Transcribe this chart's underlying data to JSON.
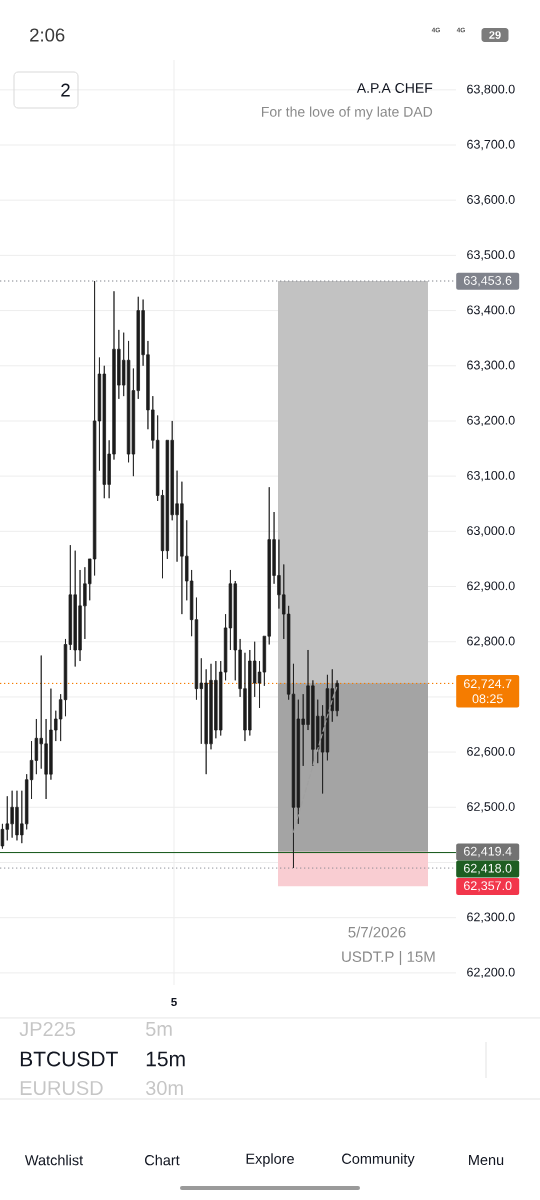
{
  "chart_data": {
    "type": "candlestick",
    "title": "A.P.A CHEF",
    "subtitle": "For the love of my late DAD",
    "color": "#1c1c1c",
    "categories": [
      null,
      null,
      null,
      null,
      null,
      null,
      null,
      null,
      null,
      null,
      null,
      null,
      null,
      null,
      null,
      null,
      null,
      null,
      null,
      null,
      null,
      null,
      null,
      null,
      null,
      null,
      null,
      null,
      null,
      null,
      null,
      null,
      null,
      null,
      null,
      null,
      null,
      null,
      null,
      null,
      null,
      null,
      null,
      null,
      null,
      null,
      null,
      null,
      null,
      null,
      null,
      null,
      null,
      null,
      null,
      null,
      null,
      null,
      null,
      null,
      null,
      null,
      null,
      null,
      null,
      null,
      null,
      null,
      null,
      null,
      null,
      null,
      null,
      null,
      null,
      null,
      null,
      null,
      null,
      null,
      null,
      null,
      null,
      null,
      null,
      null,
      null,
      null,
      null,
      null,
      null,
      null,
      null,
      null
    ],
    "ohlc": [
      [
        62430,
        62470,
        62425,
        62460
      ],
      [
        62460,
        62520,
        62440,
        62470
      ],
      [
        62470,
        62530,
        62445,
        62500
      ],
      [
        62500,
        62530,
        62440,
        62450
      ],
      [
        62450,
        62530,
        62435,
        62470
      ],
      [
        62470,
        62560,
        62460,
        62550
      ],
      [
        62550,
        62620,
        62515,
        62585
      ],
      [
        62585,
        62660,
        62560,
        62625
      ],
      [
        62625,
        62775,
        62570,
        62615
      ],
      [
        62615,
        62660,
        62515,
        62560
      ],
      [
        62560,
        62715,
        62550,
        62640
      ],
      [
        62640,
        62675,
        62620,
        62660
      ],
      [
        62660,
        62705,
        62620,
        62695
      ],
      [
        62695,
        62805,
        62665,
        62795
      ],
      [
        62795,
        62975,
        62785,
        62885
      ],
      [
        62885,
        62965,
        62755,
        62785
      ],
      [
        62785,
        62930,
        62765,
        62865
      ],
      [
        62865,
        62935,
        62805,
        62905
      ],
      [
        62905,
        62950,
        62875,
        62950
      ],
      [
        62950,
        63453.6,
        62920,
        63200
      ],
      [
        63200,
        63315,
        63110,
        63285
      ],
      [
        63285,
        63300,
        63060,
        63085
      ],
      [
        63085,
        63165,
        63060,
        63140
      ],
      [
        63140,
        63435,
        63130,
        63330
      ],
      [
        63330,
        63365,
        63240,
        63265
      ],
      [
        63265,
        63360,
        63245,
        63310
      ],
      [
        63310,
        63345,
        63125,
        63140
      ],
      [
        63140,
        63295,
        63100,
        63255
      ],
      [
        63255,
        63425,
        63240,
        63400
      ],
      [
        63400,
        63420,
        63300,
        63320
      ],
      [
        63320,
        63345,
        63185,
        63220
      ],
      [
        63220,
        63245,
        63150,
        63165
      ],
      [
        63165,
        63210,
        63055,
        63065
      ],
      [
        63065,
        63075,
        62915,
        62965
      ],
      [
        62965,
        63165,
        62950,
        63165
      ],
      [
        63165,
        63200,
        63020,
        63030
      ],
      [
        63030,
        63110,
        62945,
        63050
      ],
      [
        63050,
        63090,
        62850,
        62955
      ],
      [
        62955,
        63020,
        62875,
        62910
      ],
      [
        62910,
        62930,
        62810,
        62840
      ],
      [
        62840,
        62880,
        62695,
        62715
      ],
      [
        62715,
        62770,
        62615,
        62725
      ],
      [
        62725,
        62750,
        62560,
        62615
      ],
      [
        62615,
        62760,
        62605,
        62730
      ],
      [
        62730,
        62765,
        62625,
        62640
      ],
      [
        62640,
        62765,
        62630,
        62745
      ],
      [
        62745,
        62850,
        62730,
        62825
      ],
      [
        62825,
        62930,
        62785,
        62905
      ],
      [
        62905,
        62910,
        62730,
        62785
      ],
      [
        62785,
        62805,
        62700,
        62715
      ],
      [
        62715,
        62780,
        62620,
        62640
      ],
      [
        62640,
        62785,
        62630,
        62765
      ],
      [
        62765,
        62800,
        62700,
        62725
      ],
      [
        62725,
        62765,
        62680,
        62745
      ],
      [
        62745,
        62810,
        62720,
        62810
      ],
      [
        62810,
        63080,
        62795,
        62985
      ],
      [
        62985,
        63035,
        62905,
        62920
      ],
      [
        62920,
        62985,
        62860,
        62885
      ],
      [
        62885,
        62940,
        62805,
        62850
      ],
      [
        62850,
        62865,
        62695,
        62705
      ],
      [
        62705,
        62760,
        62390,
        62500
      ],
      [
        62500,
        62695,
        62470,
        62660
      ],
      [
        62660,
        62705,
        62575,
        62650
      ],
      [
        62650,
        62785,
        62640,
        62720
      ],
      [
        62720,
        62730,
        62575,
        62605
      ],
      [
        62605,
        62695,
        62580,
        62665
      ],
      [
        62665,
        62685,
        62525,
        62600
      ],
      [
        62600,
        62740,
        62585,
        62715
      ],
      [
        62715,
        62750,
        62655,
        62675
      ],
      [
        62675,
        62730,
        62665,
        62724.7
      ],
      null,
      null,
      null,
      null,
      null,
      null,
      null,
      null,
      null,
      null,
      null,
      null,
      null,
      null,
      null,
      null,
      null,
      null,
      null,
      null,
      null,
      null,
      null,
      null
    ],
    "series": [
      {
        "type": "line",
        "values": [
          null,
          null,
          null,
          null,
          null,
          null,
          null,
          null,
          null,
          null,
          null,
          null,
          null,
          null,
          null,
          null,
          null,
          null,
          null,
          null,
          null,
          null,
          null,
          null,
          null,
          null,
          null,
          null,
          null,
          null,
          null,
          null,
          null,
          null,
          null,
          null,
          null,
          null,
          null,
          null,
          null,
          null,
          null,
          null,
          null,
          null,
          null,
          null,
          null,
          null,
          null,
          null,
          null,
          null,
          null,
          null,
          null,
          null,
          null,
          null,
          62455,
          62485,
          62515,
          62545,
          62575,
          62605,
          62635,
          62665,
          62695,
          62720,
          null,
          null,
          null,
          null,
          null,
          null,
          null,
          null,
          null,
          null,
          null,
          null,
          null,
          null,
          null,
          null,
          null,
          null,
          null,
          null,
          null,
          null,
          null,
          null
        ],
        "color": "#a0a0a0",
        "line_style": "dashed"
      }
    ],
    "ylim": [
      62178,
      63854
    ],
    "yticks": [
      {
        "value": 62200,
        "label": "62,200.0"
      },
      {
        "value": 62300,
        "label": "62,300.0"
      },
      {
        "value": 62400,
        "label": null
      },
      {
        "value": 62500,
        "label": "62,500.0"
      },
      {
        "value": 62600,
        "label": "62,600.0"
      },
      {
        "value": 62700,
        "label": null
      },
      {
        "value": 62800,
        "label": "62,800.0"
      },
      {
        "value": 62900,
        "label": "62,900.0"
      },
      {
        "value": 63000,
        "label": "63,000.0"
      },
      {
        "value": 63100,
        "label": "63,100.0"
      },
      {
        "value": 63200,
        "label": "63,200.0"
      },
      {
        "value": 63300,
        "label": "63,300.0"
      },
      {
        "value": 63400,
        "label": "63,400.0"
      },
      {
        "value": 63500,
        "label": "63,500.0"
      },
      {
        "value": 63600,
        "label": "63,600.0"
      },
      {
        "value": 63700,
        "label": "63,700.0"
      },
      {
        "value": 63800,
        "label": "63,800.0"
      }
    ],
    "grid": "y",
    "bands": [
      {
        "axis": "y",
        "from": 62419.4,
        "to": 63453.6,
        "color": "#c2c2c2",
        "label": "62,419.4"
      },
      {
        "axis": "y",
        "from": 62419.4,
        "to": 62724.7,
        "color": "#a4a4a4"
      },
      {
        "axis": "y",
        "from": 62357.0,
        "to": 62419.4,
        "color": "#f9cdd2",
        "label": "62,357.0"
      }
    ],
    "ref_lines": [
      {
        "axis": "y",
        "value": 63453.6,
        "label": "63,453.6",
        "color": "#80838c",
        "line_style": "dotted"
      },
      {
        "axis": "y",
        "value": 62724.7,
        "label": "62,724.7",
        "color": "#f57c00",
        "line_style": "dotted"
      },
      {
        "axis": "y",
        "value": 62418.0,
        "label": "62,418.0",
        "color": "#1e5e22",
        "line_style": "solid"
      },
      {
        "axis": "y",
        "value": 62390,
        "color": "#80838c",
        "line_style": "dotted"
      }
    ],
    "annotations": [
      "2:06",
      "4G",
      "4G",
      "29",
      "2",
      "5/7/2026",
      "USDT.P | 15M",
      "5",
      "JP225",
      "5m",
      "BTCUSDT",
      "15m",
      "EURUSD",
      "30m",
      "Watchlist",
      "Chart",
      "Explore",
      "Community",
      "Menu",
      "08:25"
    ]
  }
}
